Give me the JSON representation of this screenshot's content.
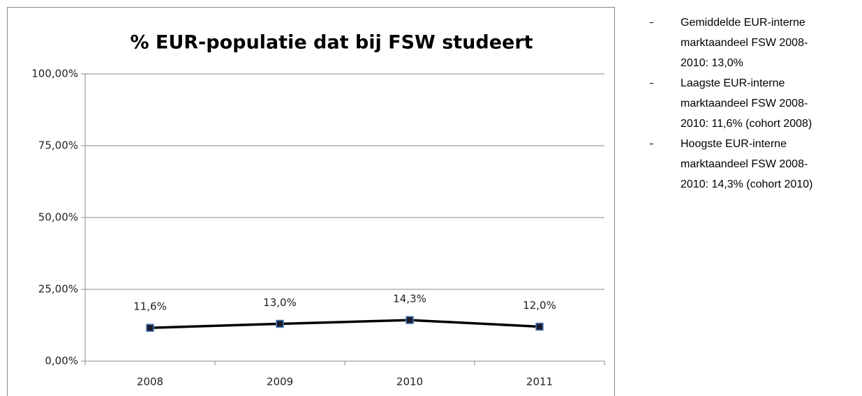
{
  "chart_data": {
    "type": "line",
    "title": "% EUR-populatie dat bij FSW studeert",
    "categories": [
      "2008",
      "2009",
      "2010",
      "2011"
    ],
    "values": [
      11.6,
      13.0,
      14.3,
      12.0
    ],
    "value_labels": [
      "11,6%",
      "13,0%",
      "14,3%",
      "12,0%"
    ],
    "color": "#000000",
    "marker_fill": "#1c1c30",
    "marker_edge": "#4a7ebb",
    "ylim": [
      0,
      100
    ],
    "yticks": [
      {
        "value": 0,
        "label": "0,00%"
      },
      {
        "value": 25,
        "label": "25,00%"
      },
      {
        "value": 50,
        "label": "50,00%"
      },
      {
        "value": 75,
        "label": "75,00%"
      },
      {
        "value": 100,
        "label": "100,00%"
      }
    ],
    "grid": true
  },
  "notes": [
    "Gemiddelde EUR-interne marktaandeel FSW 2008-2010: 13,0%",
    "Laagste EUR-interne marktaandeel FSW 2008-2010: 11,6% (cohort 2008)",
    "Hoogste EUR-interne marktaandeel FSW 2008-2010: 14,3% (cohort 2010)"
  ]
}
